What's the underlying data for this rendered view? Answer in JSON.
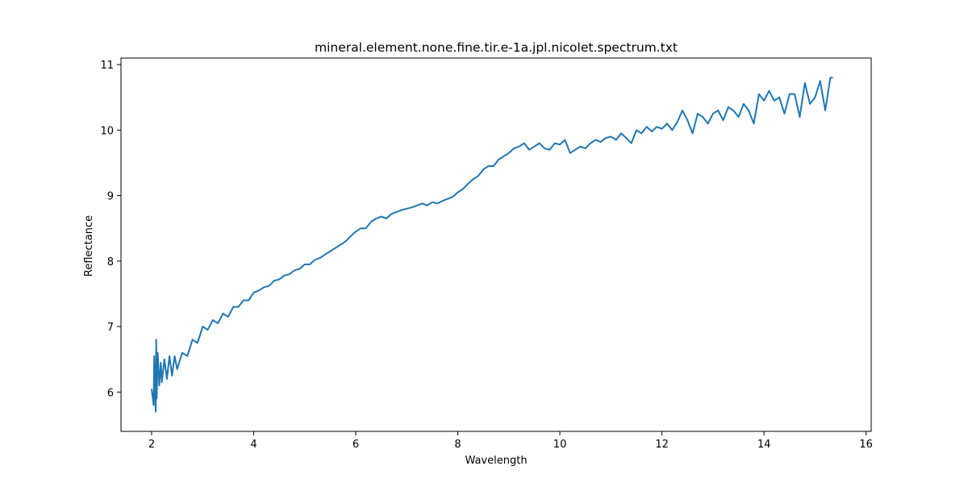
{
  "chart_data": {
    "type": "line",
    "title": "mineral.element.none.fine.tir.e-1a.jpl.nicolet.spectrum.txt",
    "xlabel": "Wavelength",
    "ylabel": "Reflectance",
    "xlim": [
      1.4,
      16.1
    ],
    "ylim": [
      5.4,
      11.1
    ],
    "x_ticks": [
      2,
      4,
      6,
      8,
      10,
      12,
      14,
      16
    ],
    "y_ticks": [
      6,
      7,
      8,
      9,
      10,
      11
    ],
    "grid": false,
    "legend": "none",
    "series": [
      {
        "color": "#1f77b4",
        "points": [
          [
            2.0,
            6.05
          ],
          [
            2.04,
            5.8
          ],
          [
            2.05,
            6.55
          ],
          [
            2.08,
            5.7
          ],
          [
            2.09,
            6.8
          ],
          [
            2.1,
            5.9
          ],
          [
            2.12,
            6.6
          ],
          [
            2.15,
            6.1
          ],
          [
            2.18,
            6.45
          ],
          [
            2.2,
            6.15
          ],
          [
            2.25,
            6.5
          ],
          [
            2.3,
            6.2
          ],
          [
            2.35,
            6.55
          ],
          [
            2.4,
            6.25
          ],
          [
            2.45,
            6.55
          ],
          [
            2.5,
            6.35
          ],
          [
            2.6,
            6.6
          ],
          [
            2.7,
            6.55
          ],
          [
            2.8,
            6.8
          ],
          [
            2.9,
            6.75
          ],
          [
            3.0,
            7.0
          ],
          [
            3.1,
            6.95
          ],
          [
            3.2,
            7.1
          ],
          [
            3.3,
            7.05
          ],
          [
            3.4,
            7.2
          ],
          [
            3.5,
            7.15
          ],
          [
            3.6,
            7.3
          ],
          [
            3.7,
            7.3
          ],
          [
            3.8,
            7.4
          ],
          [
            3.9,
            7.4
          ],
          [
            4.0,
            7.52
          ],
          [
            4.1,
            7.55
          ],
          [
            4.2,
            7.6
          ],
          [
            4.3,
            7.62
          ],
          [
            4.4,
            7.7
          ],
          [
            4.5,
            7.72
          ],
          [
            4.6,
            7.78
          ],
          [
            4.7,
            7.8
          ],
          [
            4.8,
            7.86
          ],
          [
            4.9,
            7.88
          ],
          [
            5.0,
            7.95
          ],
          [
            5.1,
            7.95
          ],
          [
            5.2,
            8.02
          ],
          [
            5.3,
            8.05
          ],
          [
            5.4,
            8.1
          ],
          [
            5.5,
            8.15
          ],
          [
            5.6,
            8.2
          ],
          [
            5.7,
            8.25
          ],
          [
            5.8,
            8.3
          ],
          [
            5.9,
            8.38
          ],
          [
            6.0,
            8.45
          ],
          [
            6.1,
            8.5
          ],
          [
            6.2,
            8.5
          ],
          [
            6.3,
            8.6
          ],
          [
            6.4,
            8.65
          ],
          [
            6.5,
            8.68
          ],
          [
            6.6,
            8.65
          ],
          [
            6.7,
            8.72
          ],
          [
            6.8,
            8.75
          ],
          [
            6.9,
            8.78
          ],
          [
            7.0,
            8.8
          ],
          [
            7.1,
            8.82
          ],
          [
            7.2,
            8.85
          ],
          [
            7.3,
            8.88
          ],
          [
            7.4,
            8.85
          ],
          [
            7.5,
            8.9
          ],
          [
            7.6,
            8.88
          ],
          [
            7.7,
            8.92
          ],
          [
            7.8,
            8.95
          ],
          [
            7.9,
            8.98
          ],
          [
            8.0,
            9.05
          ],
          [
            8.1,
            9.1
          ],
          [
            8.2,
            9.18
          ],
          [
            8.3,
            9.25
          ],
          [
            8.4,
            9.3
          ],
          [
            8.5,
            9.4
          ],
          [
            8.6,
            9.45
          ],
          [
            8.7,
            9.45
          ],
          [
            8.8,
            9.55
          ],
          [
            8.9,
            9.6
          ],
          [
            9.0,
            9.65
          ],
          [
            9.1,
            9.72
          ],
          [
            9.2,
            9.75
          ],
          [
            9.3,
            9.8
          ],
          [
            9.4,
            9.7
          ],
          [
            9.5,
            9.75
          ],
          [
            9.6,
            9.8
          ],
          [
            9.7,
            9.72
          ],
          [
            9.8,
            9.7
          ],
          [
            9.9,
            9.8
          ],
          [
            10.0,
            9.78
          ],
          [
            10.1,
            9.85
          ],
          [
            10.2,
            9.65
          ],
          [
            10.3,
            9.7
          ],
          [
            10.4,
            9.75
          ],
          [
            10.5,
            9.72
          ],
          [
            10.6,
            9.8
          ],
          [
            10.7,
            9.85
          ],
          [
            10.8,
            9.82
          ],
          [
            10.9,
            9.88
          ],
          [
            11.0,
            9.9
          ],
          [
            11.1,
            9.85
          ],
          [
            11.2,
            9.95
          ],
          [
            11.3,
            9.88
          ],
          [
            11.4,
            9.8
          ],
          [
            11.5,
            10.0
          ],
          [
            11.6,
            9.95
          ],
          [
            11.7,
            10.05
          ],
          [
            11.8,
            9.98
          ],
          [
            11.9,
            10.05
          ],
          [
            12.0,
            10.02
          ],
          [
            12.1,
            10.1
          ],
          [
            12.2,
            10.0
          ],
          [
            12.3,
            10.12
          ],
          [
            12.4,
            10.3
          ],
          [
            12.5,
            10.15
          ],
          [
            12.6,
            9.95
          ],
          [
            12.7,
            10.25
          ],
          [
            12.8,
            10.2
          ],
          [
            12.9,
            10.1
          ],
          [
            13.0,
            10.25
          ],
          [
            13.1,
            10.3
          ],
          [
            13.2,
            10.15
          ],
          [
            13.3,
            10.35
          ],
          [
            13.4,
            10.3
          ],
          [
            13.5,
            10.2
          ],
          [
            13.6,
            10.4
          ],
          [
            13.7,
            10.3
          ],
          [
            13.8,
            10.1
          ],
          [
            13.9,
            10.55
          ],
          [
            14.0,
            10.45
          ],
          [
            14.1,
            10.6
          ],
          [
            14.2,
            10.45
          ],
          [
            14.3,
            10.5
          ],
          [
            14.4,
            10.25
          ],
          [
            14.5,
            10.55
          ],
          [
            14.6,
            10.55
          ],
          [
            14.7,
            10.2
          ],
          [
            14.8,
            10.72
          ],
          [
            14.9,
            10.4
          ],
          [
            15.0,
            10.5
          ],
          [
            15.1,
            10.75
          ],
          [
            15.2,
            10.3
          ],
          [
            15.3,
            10.8
          ],
          [
            15.35,
            10.8
          ]
        ]
      }
    ]
  }
}
